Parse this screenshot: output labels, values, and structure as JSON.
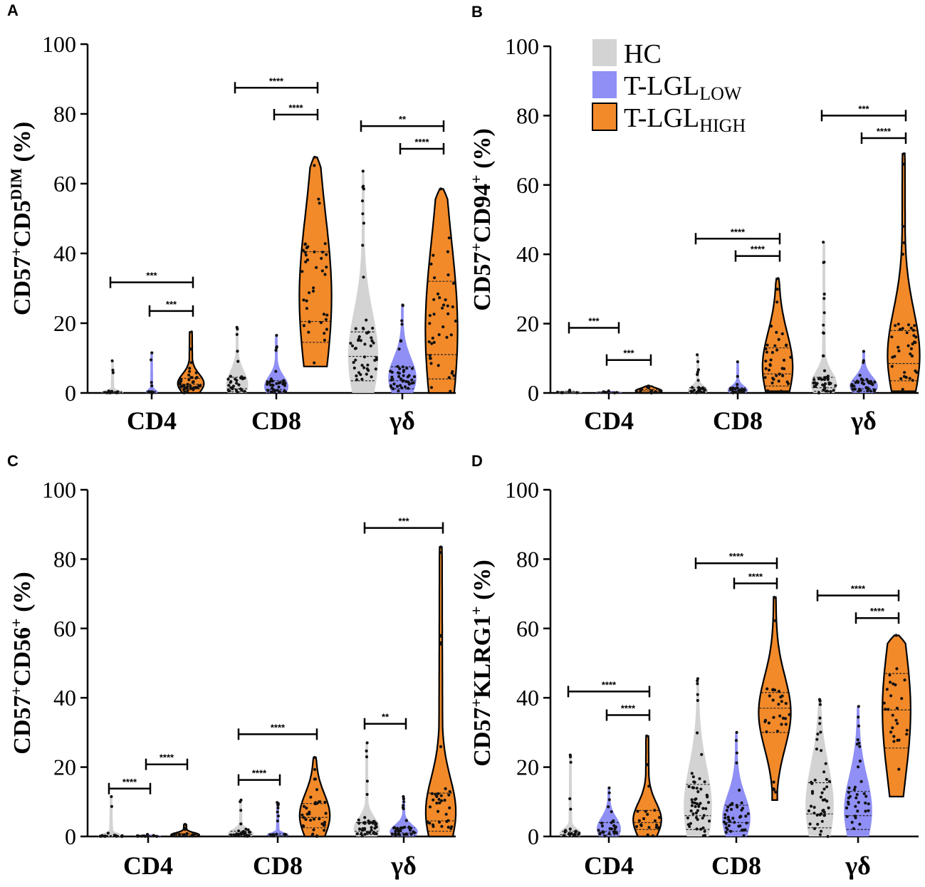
{
  "colors": {
    "HC": "#d3d3d3",
    "T-LGL_LOW": "#8f8ff5",
    "T-LGL_HIGH": "#f28a2a",
    "axis": "#000000"
  },
  "legend": [
    {
      "main": "HC",
      "sub": "",
      "color_key": "HC"
    },
    {
      "main": "T-LGL",
      "sub": "LOW",
      "color_key": "T-LGL_LOW"
    },
    {
      "main": "T-LGL",
      "sub": "HIGH",
      "color_key": "T-LGL_HIGH"
    }
  ],
  "chart_data": [
    {
      "panel": "A",
      "type": "violin",
      "ylabel_parts": [
        {
          "t": "CD57",
          "sup": false
        },
        {
          "t": "+",
          "sup": true
        },
        {
          "t": "CD5",
          "sup": false
        },
        {
          "t": "DIM",
          "sup": true
        },
        {
          "t": "  (%)",
          "sup": false
        }
      ],
      "ylim": [
        0,
        100
      ],
      "yticks": [
        0,
        20,
        40,
        60,
        80,
        100
      ],
      "categories": [
        "CD4",
        "CD8",
        "γδ"
      ],
      "series": [
        "HC",
        "T-LGL_LOW",
        "T-LGL_HIGH"
      ],
      "violins": [
        {
          "group": 0,
          "s": 0,
          "min": 0,
          "max": 9.2,
          "median": 0.2,
          "q1": 0,
          "q3": 0.4,
          "max_w": 1,
          "n": 18
        },
        {
          "group": 0,
          "s": 1,
          "min": 0,
          "max": 11.5,
          "median": 0.2,
          "q1": 0,
          "q3": 0.5,
          "max_w": 0.5,
          "n": 10
        },
        {
          "group": 0,
          "s": 2,
          "min": 0,
          "max": 17.5,
          "median": 2.5,
          "q1": 1.2,
          "q3": 4.2,
          "max_w": 1.2,
          "n": 45
        },
        {
          "group": 1,
          "s": 0,
          "min": 0,
          "max": 18.8,
          "median": 1.2,
          "q1": 0.3,
          "q3": 4.5,
          "max_w": 1,
          "n": 28
        },
        {
          "group": 1,
          "s": 1,
          "min": 0,
          "max": 16.5,
          "median": 1.0,
          "q1": 0.2,
          "q3": 3.5,
          "max_w": 1.1,
          "n": 38
        },
        {
          "group": 1,
          "s": 2,
          "min": 7.6,
          "max": 67.6,
          "median": 20.5,
          "q1": 14.5,
          "q3": 40.5,
          "max_w": 1.5,
          "n": 40
        },
        {
          "group": 2,
          "s": 0,
          "min": 0,
          "max": 63.6,
          "median": 10.5,
          "q1": 3.5,
          "q3": 17.5,
          "max_w": 1.4,
          "n": 50
        },
        {
          "group": 2,
          "s": 1,
          "min": 0,
          "max": 25.2,
          "median": 3.5,
          "q1": 1.2,
          "q3": 7.5,
          "max_w": 1.3,
          "n": 45
        },
        {
          "group": 2,
          "s": 2,
          "min": 0,
          "max": 58.5,
          "median": 11.0,
          "q1": 4.0,
          "q3": 32.0,
          "max_w": 1.5,
          "n": 40
        }
      ],
      "significance": [
        {
          "group": 0,
          "from": 0,
          "to": 2,
          "y": 31.7,
          "label": "***"
        },
        {
          "group": 0,
          "from": 1,
          "to": 2,
          "y": 23.5,
          "label": "***"
        },
        {
          "group": 1,
          "from": 0,
          "to": 2,
          "y": 87.5,
          "label": "****"
        },
        {
          "group": 1,
          "from": 1,
          "to": 2,
          "y": 79.8,
          "label": "****"
        },
        {
          "group": 2,
          "from": 0,
          "to": 2,
          "y": 76.5,
          "label": "**"
        },
        {
          "group": 2,
          "from": 1,
          "to": 2,
          "y": 70.0,
          "label": "****"
        }
      ]
    },
    {
      "panel": "B",
      "type": "violin",
      "ylabel_parts": [
        {
          "t": "CD57",
          "sup": false
        },
        {
          "t": "+",
          "sup": true
        },
        {
          "t": "CD94",
          "sup": false
        },
        {
          "t": "+",
          "sup": true
        },
        {
          "t": " (%)",
          "sup": false
        }
      ],
      "ylim": [
        0,
        100
      ],
      "yticks": [
        0,
        20,
        40,
        60,
        80,
        100
      ],
      "categories": [
        "CD4",
        "CD8",
        "γδ"
      ],
      "series": [
        "HC",
        "T-LGL_LOW",
        "T-LGL_HIGH"
      ],
      "violins": [
        {
          "group": 0,
          "s": 0,
          "min": 0,
          "max": 0.8,
          "median": 0.2,
          "q1": 0,
          "q3": 0.4,
          "max_w": 1.2,
          "n": 8
        },
        {
          "group": 0,
          "s": 1,
          "min": 0,
          "max": 0.6,
          "median": 0.2,
          "q1": 0,
          "q3": 0.3,
          "max_w": 1.2,
          "n": 6
        },
        {
          "group": 0,
          "s": 2,
          "min": 0,
          "max": 2.0,
          "median": 0.6,
          "q1": 0.2,
          "q3": 1.0,
          "max_w": 1.2,
          "n": 14
        },
        {
          "group": 1,
          "s": 0,
          "min": 0,
          "max": 11.0,
          "median": 0.5,
          "q1": 0.1,
          "q3": 1.5,
          "max_w": 0.9,
          "n": 24
        },
        {
          "group": 1,
          "s": 1,
          "min": 0,
          "max": 9.0,
          "median": 0.6,
          "q1": 0.1,
          "q3": 1.5,
          "max_w": 0.9,
          "n": 26
        },
        {
          "group": 1,
          "s": 2,
          "min": 0.5,
          "max": 33.0,
          "median": 5.5,
          "q1": 2.0,
          "q3": 13.0,
          "max_w": 1.4,
          "n": 38
        },
        {
          "group": 2,
          "s": 0,
          "min": 0,
          "max": 43.5,
          "median": 1.5,
          "q1": 0.5,
          "q3": 4.5,
          "max_w": 1.2,
          "n": 42
        },
        {
          "group": 2,
          "s": 1,
          "min": 0,
          "max": 12.0,
          "median": 1.2,
          "q1": 0.4,
          "q3": 3.5,
          "max_w": 1.3,
          "n": 38
        },
        {
          "group": 2,
          "s": 2,
          "min": 0.5,
          "max": 69.0,
          "median": 8.5,
          "q1": 3.5,
          "q3": 18.0,
          "max_w": 1.5,
          "n": 38
        }
      ],
      "significance": [
        {
          "group": 0,
          "from": 0,
          "to": 0,
          "y": 18.8,
          "label": "***",
          "x_from": -1.0,
          "x_to": 0.25
        },
        {
          "group": 0,
          "from": 1,
          "to": 2,
          "y": 9.5,
          "label": "***"
        },
        {
          "group": 1,
          "from": 0,
          "to": 2,
          "y": 44.5,
          "label": "****"
        },
        {
          "group": 1,
          "from": 1,
          "to": 2,
          "y": 39.5,
          "label": "****"
        },
        {
          "group": 2,
          "from": 0,
          "to": 2,
          "y": 80.0,
          "label": "***"
        },
        {
          "group": 2,
          "from": 1,
          "to": 2,
          "y": 73.5,
          "label": "****"
        }
      ]
    },
    {
      "panel": "C",
      "type": "violin",
      "ylabel_parts": [
        {
          "t": "CD57",
          "sup": false
        },
        {
          "t": "+",
          "sup": true
        },
        {
          "t": "CD56",
          "sup": false
        },
        {
          "t": "+",
          "sup": true
        },
        {
          "t": " (%)",
          "sup": false
        }
      ],
      "ylim": [
        0,
        100
      ],
      "yticks": [
        0,
        20,
        40,
        60,
        80,
        100
      ],
      "categories": [
        "CD4",
        "CD8",
        "γδ"
      ],
      "series": [
        "HC",
        "T-LGL_LOW",
        "T-LGL_HIGH"
      ],
      "violins": [
        {
          "group": 0,
          "s": 0,
          "min": 0,
          "max": 11.5,
          "median": 0.1,
          "q1": 0,
          "q3": 0.3,
          "max_w": 1.2,
          "n": 14
        },
        {
          "group": 0,
          "s": 1,
          "min": 0,
          "max": 0.6,
          "median": 0.1,
          "q1": 0,
          "q3": 0.3,
          "max_w": 1.2,
          "n": 10
        },
        {
          "group": 0,
          "s": 2,
          "min": 0,
          "max": 3.5,
          "median": 0.4,
          "q1": 0.1,
          "q3": 0.8,
          "max_w": 1.3,
          "n": 18
        },
        {
          "group": 1,
          "s": 0,
          "min": 0,
          "max": 10.5,
          "median": 0.5,
          "q1": 0.1,
          "q3": 1.5,
          "max_w": 1.2,
          "n": 30
        },
        {
          "group": 1,
          "s": 1,
          "min": 0,
          "max": 9.8,
          "median": 0.3,
          "q1": 0.1,
          "q3": 0.8,
          "max_w": 1.0,
          "n": 14
        },
        {
          "group": 1,
          "s": 2,
          "min": 0,
          "max": 22.8,
          "median": 5.5,
          "q1": 2.5,
          "q3": 9.5,
          "max_w": 1.4,
          "n": 36
        },
        {
          "group": 2,
          "s": 0,
          "min": 0,
          "max": 27.0,
          "median": 1.5,
          "q1": 0.5,
          "q3": 4.0,
          "max_w": 1.2,
          "n": 40
        },
        {
          "group": 2,
          "s": 1,
          "min": 0,
          "max": 11.5,
          "median": 1.0,
          "q1": 0.3,
          "q3": 2.5,
          "max_w": 1.3,
          "n": 36
        },
        {
          "group": 2,
          "s": 2,
          "min": 0,
          "max": 83.5,
          "median": 4.5,
          "q1": 1.5,
          "q3": 12.5,
          "max_w": 1.4,
          "n": 36
        }
      ],
      "significance": [
        {
          "group": 0,
          "from": 0,
          "to": 1,
          "y": 13.8,
          "label": "****"
        },
        {
          "group": 0,
          "from": 1,
          "to": 2,
          "y": 20.8,
          "label": "****"
        },
        {
          "group": 1,
          "from": 0,
          "to": 1,
          "y": 16.3,
          "label": "****"
        },
        {
          "group": 1,
          "from": 0,
          "to": 2,
          "y": 29.5,
          "label": "****"
        },
        {
          "group": 2,
          "from": 0,
          "to": 1,
          "y": 32.5,
          "label": "**"
        },
        {
          "group": 2,
          "from": 0,
          "to": 2,
          "y": 89.0,
          "label": "***"
        }
      ]
    },
    {
      "panel": "D",
      "type": "violin",
      "ylabel_parts": [
        {
          "t": "CD57",
          "sup": false
        },
        {
          "t": "+",
          "sup": true
        },
        {
          "t": "KLRG1",
          "sup": false
        },
        {
          "t": "+",
          "sup": true
        },
        {
          "t": " (%)",
          "sup": false
        }
      ],
      "ylim": [
        0,
        100
      ],
      "yticks": [
        0,
        20,
        40,
        60,
        80,
        100
      ],
      "categories": [
        "CD4",
        "CD8",
        "γδ"
      ],
      "series": [
        "HC",
        "T-LGL_LOW",
        "T-LGL_HIGH"
      ],
      "violins": [
        {
          "group": 0,
          "s": 0,
          "min": 0,
          "max": 23.5,
          "median": 0.5,
          "q1": 0.1,
          "q3": 1.5,
          "max_w": 1.0,
          "n": 20
        },
        {
          "group": 0,
          "s": 1,
          "min": 0,
          "max": 14.0,
          "median": 1.5,
          "q1": 0.4,
          "q3": 4.0,
          "max_w": 1.1,
          "n": 26
        },
        {
          "group": 0,
          "s": 2,
          "min": 0,
          "max": 29.0,
          "median": 4.0,
          "q1": 2.0,
          "q3": 7.5,
          "max_w": 1.3,
          "n": 20
        },
        {
          "group": 1,
          "s": 0,
          "min": 0,
          "max": 45.5,
          "median": 6.0,
          "q1": 2.0,
          "q3": 15.0,
          "max_w": 1.3,
          "n": 55
        },
        {
          "group": 1,
          "s": 1,
          "min": 0,
          "max": 30.0,
          "median": 4.0,
          "q1": 1.5,
          "q3": 9.0,
          "max_w": 1.3,
          "n": 42
        },
        {
          "group": 1,
          "s": 2,
          "min": 10.5,
          "max": 69.0,
          "median": 37.0,
          "q1": 30.0,
          "q3": 41.5,
          "max_w": 1.5,
          "n": 30
        },
        {
          "group": 2,
          "s": 0,
          "min": 0,
          "max": 39.5,
          "median": 6.5,
          "q1": 2.5,
          "q3": 15.5,
          "max_w": 1.3,
          "n": 46
        },
        {
          "group": 2,
          "s": 1,
          "min": 0,
          "max": 37.5,
          "median": 6.0,
          "q1": 2.0,
          "q3": 13.0,
          "max_w": 1.3,
          "n": 36
        },
        {
          "group": 2,
          "s": 2,
          "min": 11.5,
          "max": 58.0,
          "median": 36.5,
          "q1": 25.5,
          "q3": 47.0,
          "max_w": 1.3,
          "n": 26
        }
      ],
      "significance": [
        {
          "group": 0,
          "from": 0,
          "to": 2,
          "y": 41.8,
          "label": "****"
        },
        {
          "group": 0,
          "from": 1,
          "to": 2,
          "y": 35.0,
          "label": "****"
        },
        {
          "group": 1,
          "from": 0,
          "to": 2,
          "y": 78.8,
          "label": "****"
        },
        {
          "group": 1,
          "from": 1,
          "to": 2,
          "y": 73.0,
          "label": "****"
        },
        {
          "group": 2,
          "from": 0,
          "to": 2,
          "y": 69.5,
          "label": "****"
        },
        {
          "group": 2,
          "from": 1,
          "to": 2,
          "y": 63.0,
          "label": "****"
        }
      ]
    }
  ]
}
